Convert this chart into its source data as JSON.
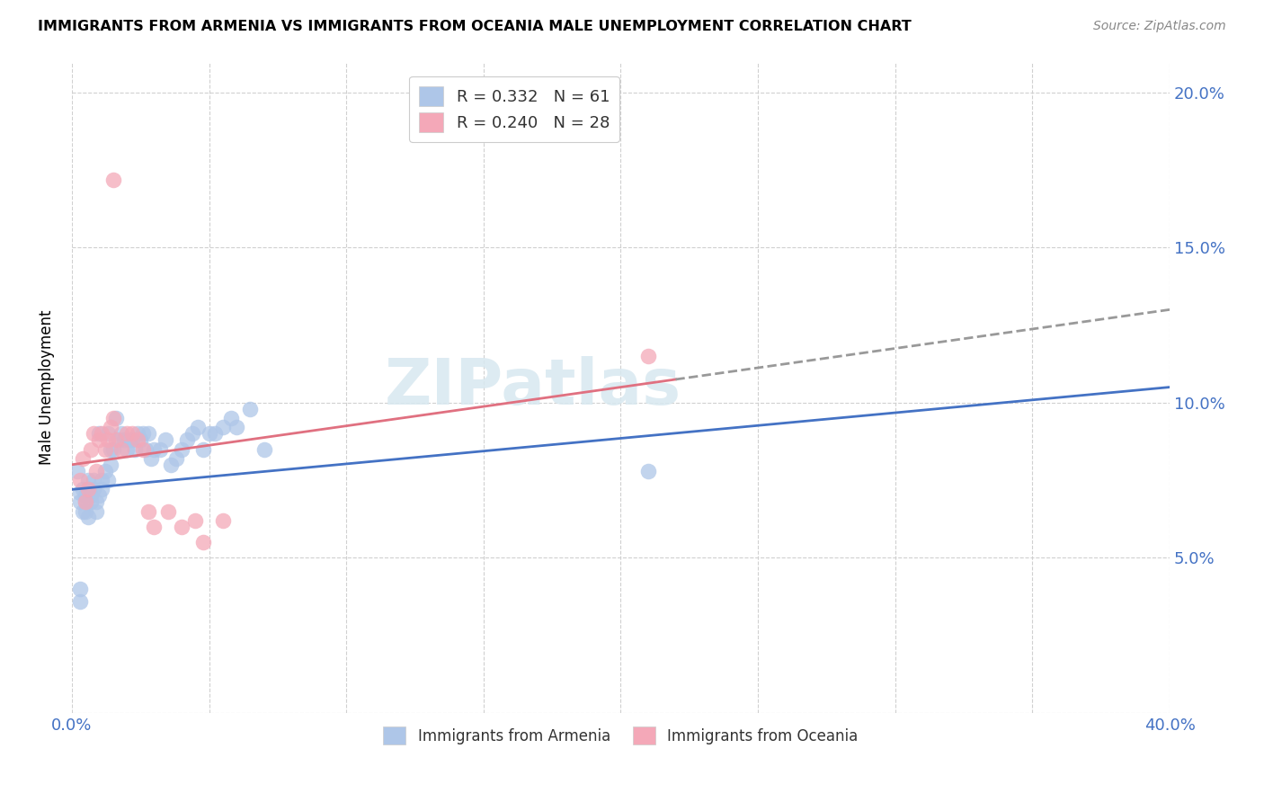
{
  "title": "IMMIGRANTS FROM ARMENIA VS IMMIGRANTS FROM OCEANIA MALE UNEMPLOYMENT CORRELATION CHART",
  "source": "Source: ZipAtlas.com",
  "ylabel": "Male Unemployment",
  "xlim": [
    0.0,
    0.4
  ],
  "ylim": [
    0.0,
    0.21
  ],
  "xtick_positions": [
    0.0,
    0.05,
    0.1,
    0.15,
    0.2,
    0.25,
    0.3,
    0.35,
    0.4
  ],
  "xtick_labels": [
    "0.0%",
    "",
    "",
    "",
    "",
    "",
    "",
    "",
    "40.0%"
  ],
  "ytick_positions": [
    0.0,
    0.05,
    0.1,
    0.15,
    0.2
  ],
  "ytick_labels_right": [
    "",
    "5.0%",
    "10.0%",
    "15.0%",
    "20.0%"
  ],
  "legend_label1": "R = 0.332   N = 61",
  "legend_label2": "R = 0.240   N = 28",
  "legend_color1": "#aec6e8",
  "legend_color2": "#f4a8b8",
  "scatter_color1": "#aec6e8",
  "scatter_color2": "#f4a8b8",
  "line_color1": "#4472c4",
  "line_color2": "#e07080",
  "line_color_dashed": "#999999",
  "watermark": "ZIPatlas",
  "bottom_label1": "Immigrants from Armenia",
  "bottom_label2": "Immigrants from Oceania",
  "line1_x0": 0.0,
  "line1_y0": 0.072,
  "line1_x1": 0.4,
  "line1_y1": 0.105,
  "line2_x0": 0.0,
  "line2_y0": 0.08,
  "line2_x1": 0.4,
  "line2_y1": 0.13,
  "line2_solid_end": 0.22,
  "scatter_armenia_x": [
    0.002,
    0.003,
    0.003,
    0.004,
    0.004,
    0.005,
    0.005,
    0.005,
    0.006,
    0.006,
    0.006,
    0.007,
    0.007,
    0.008,
    0.008,
    0.009,
    0.009,
    0.01,
    0.01,
    0.011,
    0.011,
    0.012,
    0.013,
    0.013,
    0.014,
    0.014,
    0.015,
    0.016,
    0.017,
    0.018,
    0.019,
    0.02,
    0.021,
    0.022,
    0.023,
    0.024,
    0.025,
    0.026,
    0.027,
    0.028,
    0.029,
    0.03,
    0.032,
    0.034,
    0.036,
    0.038,
    0.04,
    0.042,
    0.044,
    0.046,
    0.048,
    0.05,
    0.052,
    0.055,
    0.058,
    0.06,
    0.065,
    0.07,
    0.003,
    0.21,
    0.003
  ],
  "scatter_armenia_y": [
    0.078,
    0.071,
    0.068,
    0.065,
    0.072,
    0.07,
    0.068,
    0.065,
    0.072,
    0.075,
    0.063,
    0.068,
    0.07,
    0.072,
    0.075,
    0.068,
    0.065,
    0.07,
    0.09,
    0.075,
    0.072,
    0.078,
    0.075,
    0.09,
    0.08,
    0.085,
    0.085,
    0.095,
    0.088,
    0.09,
    0.088,
    0.085,
    0.088,
    0.088,
    0.085,
    0.09,
    0.088,
    0.09,
    0.085,
    0.09,
    0.082,
    0.085,
    0.085,
    0.088,
    0.08,
    0.082,
    0.085,
    0.088,
    0.09,
    0.092,
    0.085,
    0.09,
    0.09,
    0.092,
    0.095,
    0.092,
    0.098,
    0.085,
    0.04,
    0.078,
    0.036
  ],
  "scatter_oceania_x": [
    0.003,
    0.004,
    0.005,
    0.006,
    0.007,
    0.008,
    0.009,
    0.01,
    0.011,
    0.012,
    0.013,
    0.014,
    0.015,
    0.016,
    0.018,
    0.02,
    0.022,
    0.024,
    0.026,
    0.028,
    0.03,
    0.035,
    0.04,
    0.045,
    0.048,
    0.055,
    0.21,
    0.015
  ],
  "scatter_oceania_y": [
    0.075,
    0.082,
    0.068,
    0.072,
    0.085,
    0.09,
    0.078,
    0.088,
    0.09,
    0.085,
    0.088,
    0.092,
    0.095,
    0.088,
    0.085,
    0.09,
    0.09,
    0.088,
    0.085,
    0.065,
    0.06,
    0.065,
    0.06,
    0.062,
    0.055,
    0.062,
    0.115,
    0.172
  ],
  "figsize": [
    14.06,
    8.92
  ],
  "dpi": 100
}
